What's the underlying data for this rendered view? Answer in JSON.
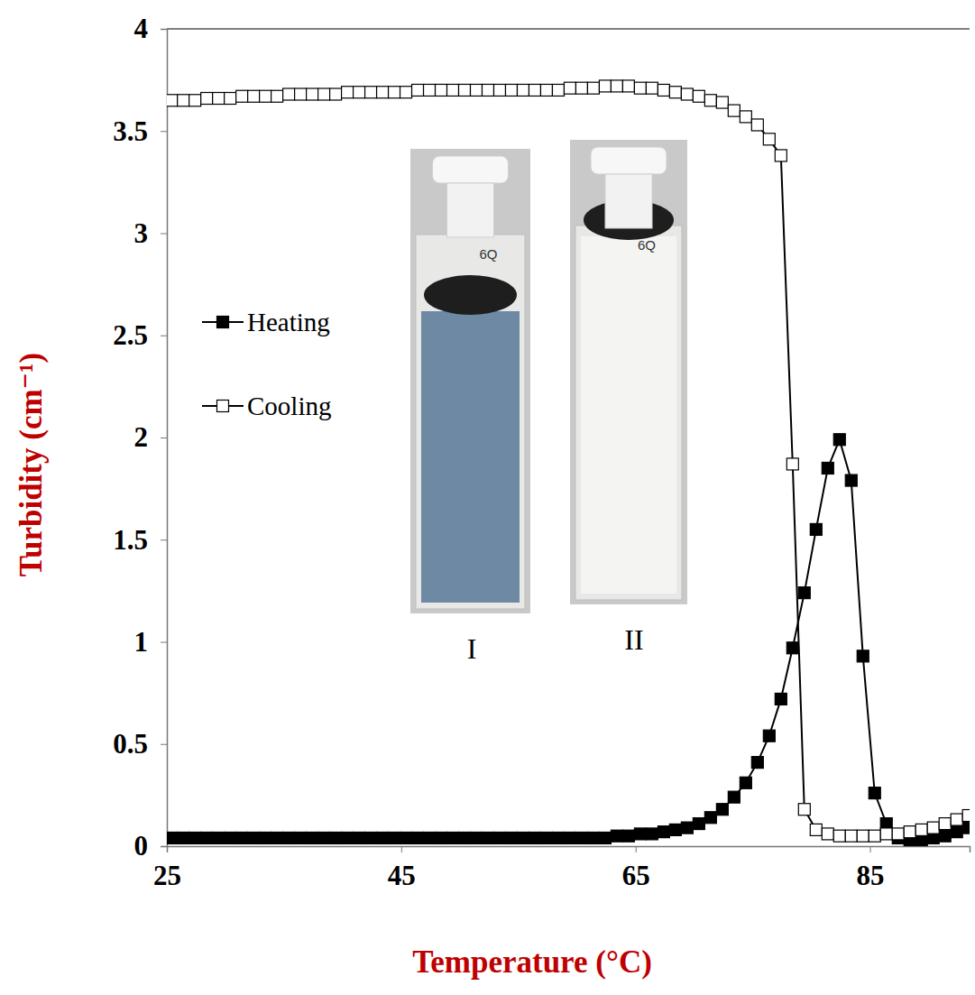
{
  "chart_data": {
    "type": "line",
    "x_label": "Temperature (°C)",
    "y_label": "Turbidity (cm⁻¹)",
    "xlim": [
      25,
      93.5
    ],
    "xticks": [
      25,
      45,
      65,
      85
    ],
    "ylim": [
      0,
      4
    ],
    "yticks": [
      0,
      0.5,
      1,
      1.5,
      2,
      2.5,
      3,
      3.5,
      4
    ],
    "legend": "upper left",
    "x": [
      25.4,
      26.4,
      27.4,
      28.4,
      29.4,
      30.4,
      31.4,
      32.4,
      33.4,
      34.4,
      35.4,
      36.4,
      37.4,
      38.4,
      39.4,
      40.4,
      41.4,
      42.4,
      43.4,
      44.4,
      45.4,
      46.4,
      47.4,
      48.4,
      49.4,
      50.4,
      51.4,
      52.4,
      53.4,
      54.4,
      55.4,
      56.4,
      57.4,
      58.4,
      59.4,
      60.4,
      61.4,
      62.4,
      63.4,
      64.4,
      65.4,
      66.4,
      67.4,
      68.4,
      69.4,
      70.4,
      71.4,
      72.4,
      73.4,
      74.4,
      75.4,
      76.4,
      77.4,
      78.4,
      79.4,
      80.4,
      81.4,
      82.4,
      83.4,
      84.4,
      85.4,
      86.4,
      87.4,
      88.4,
      89.4,
      90.4,
      91.4,
      92.4,
      93.4
    ],
    "series": [
      {
        "name": "Heating",
        "color": "#000000",
        "marker": "filled-square",
        "line_style": "solid",
        "values": [
          0.04,
          0.04,
          0.04,
          0.04,
          0.04,
          0.04,
          0.04,
          0.04,
          0.04,
          0.04,
          0.04,
          0.04,
          0.04,
          0.04,
          0.04,
          0.04,
          0.04,
          0.04,
          0.04,
          0.04,
          0.04,
          0.04,
          0.04,
          0.04,
          0.04,
          0.04,
          0.04,
          0.04,
          0.04,
          0.04,
          0.04,
          0.04,
          0.04,
          0.04,
          0.04,
          0.04,
          0.04,
          0.04,
          0.05,
          0.05,
          0.06,
          0.06,
          0.07,
          0.08,
          0.09,
          0.11,
          0.14,
          0.18,
          0.24,
          0.31,
          0.41,
          0.54,
          0.72,
          0.97,
          1.24,
          1.55,
          1.85,
          1.99,
          1.79,
          0.93,
          0.26,
          0.11,
          0.04,
          0.02,
          0.03,
          0.04,
          0.05,
          0.07,
          0.09
        ]
      },
      {
        "name": "Cooling",
        "color": "#000000",
        "marker": "open-square",
        "line_style": "solid",
        "values": [
          3.65,
          3.65,
          3.65,
          3.66,
          3.66,
          3.66,
          3.67,
          3.67,
          3.67,
          3.67,
          3.68,
          3.68,
          3.68,
          3.68,
          3.68,
          3.69,
          3.69,
          3.69,
          3.69,
          3.69,
          3.69,
          3.7,
          3.7,
          3.7,
          3.7,
          3.7,
          3.7,
          3.7,
          3.7,
          3.7,
          3.7,
          3.7,
          3.7,
          3.7,
          3.71,
          3.71,
          3.71,
          3.72,
          3.72,
          3.72,
          3.71,
          3.71,
          3.7,
          3.69,
          3.68,
          3.67,
          3.65,
          3.64,
          3.6,
          3.57,
          3.53,
          3.46,
          3.38,
          1.87,
          0.18,
          0.08,
          0.06,
          0.05,
          0.05,
          0.05,
          0.05,
          0.06,
          0.06,
          0.07,
          0.08,
          0.09,
          0.11,
          0.13,
          0.15
        ]
      }
    ],
    "annotations": [
      {
        "text": "I",
        "cap": "6Q"
      },
      {
        "text": "II",
        "cap": "6Q"
      }
    ]
  }
}
